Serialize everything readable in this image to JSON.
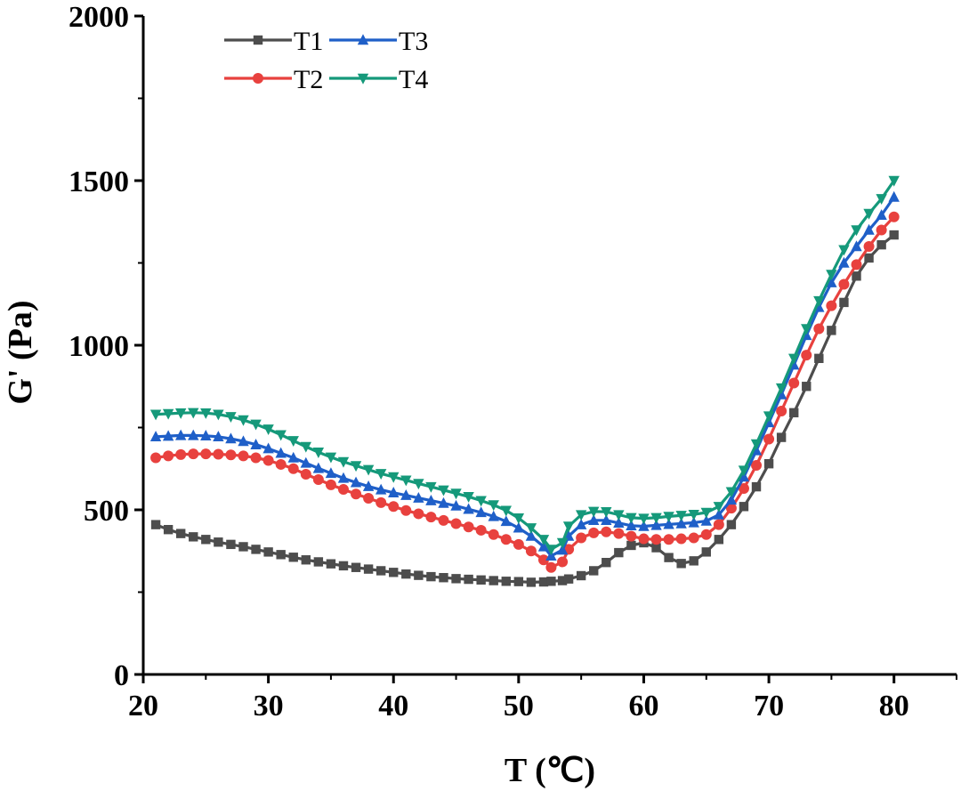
{
  "chart_data": {
    "type": "line",
    "title": "",
    "xlabel": "T (℃)",
    "ylabel": "G' (Pa)",
    "xlim": [
      20,
      85
    ],
    "ylim": [
      0,
      2000
    ],
    "xticks": [
      20,
      30,
      40,
      50,
      60,
      70,
      80
    ],
    "yticks": [
      0,
      500,
      1000,
      1500,
      2000
    ],
    "xtick_labels": [
      "20",
      "30",
      "40",
      "50",
      "60",
      "70",
      "80"
    ],
    "ytick_labels": [
      "0",
      "500",
      "1000",
      "1500",
      "2000"
    ],
    "grid": false,
    "legend_position": "top-left",
    "x": [
      21,
      22,
      23,
      24,
      25,
      26,
      27,
      28,
      29,
      30,
      31,
      32,
      33,
      34,
      35,
      36,
      37,
      38,
      39,
      40,
      41,
      42,
      43,
      44,
      45,
      46,
      47,
      48,
      49,
      50,
      51,
      52,
      52.6,
      53.5,
      54,
      55,
      56,
      57,
      58,
      59,
      60,
      61,
      62,
      63,
      64,
      65,
      66,
      67,
      68,
      69,
      70,
      71,
      72,
      73,
      74,
      75,
      76,
      77,
      78,
      79,
      80
    ],
    "series": [
      {
        "name": "T1",
        "color": "#4d4d4d",
        "marker": "square",
        "values": [
          455,
          440,
          428,
          418,
          410,
          402,
          395,
          388,
          380,
          372,
          364,
          356,
          348,
          342,
          336,
          330,
          325,
          320,
          315,
          310,
          305,
          301,
          297,
          294,
          291,
          289,
          287,
          285,
          283,
          282,
          280,
          281,
          283,
          285,
          290,
          300,
          315,
          340,
          370,
          392,
          400,
          385,
          355,
          337,
          345,
          372,
          410,
          455,
          510,
          570,
          640,
          720,
          795,
          875,
          960,
          1045,
          1130,
          1210,
          1265,
          1305,
          1335
        ]
      },
      {
        "name": "T2",
        "color": "#e8413e",
        "marker": "circle",
        "values": [
          658,
          664,
          668,
          670,
          670,
          669,
          667,
          664,
          658,
          650,
          638,
          625,
          608,
          592,
          576,
          562,
          548,
          535,
          522,
          510,
          498,
          488,
          478,
          468,
          458,
          448,
          438,
          425,
          410,
          395,
          375,
          348,
          325,
          342,
          380,
          415,
          430,
          433,
          428,
          420,
          412,
          410,
          410,
          412,
          415,
          425,
          455,
          505,
          565,
          635,
          715,
          800,
          885,
          970,
          1050,
          1120,
          1185,
          1245,
          1300,
          1350,
          1390
        ]
      },
      {
        "name": "T3",
        "color": "#1f5fc8",
        "marker": "triangle-up",
        "values": [
          722,
          724,
          726,
          726,
          725,
          722,
          716,
          708,
          698,
          686,
          672,
          658,
          642,
          626,
          611,
          596,
          583,
          571,
          561,
          552,
          544,
          536,
          528,
          520,
          512,
          502,
          492,
          480,
          465,
          445,
          420,
          388,
          360,
          378,
          420,
          455,
          468,
          468,
          460,
          452,
          450,
          453,
          456,
          458,
          461,
          466,
          485,
          530,
          600,
          680,
          765,
          850,
          940,
          1030,
          1115,
          1190,
          1250,
          1300,
          1350,
          1395,
          1450
        ]
      },
      {
        "name": "T4",
        "color": "#15997a",
        "marker": "triangle-down",
        "values": [
          790,
          792,
          794,
          795,
          794,
          790,
          783,
          773,
          760,
          745,
          728,
          710,
          692,
          675,
          660,
          646,
          634,
          622,
          610,
          600,
          590,
          580,
          570,
          560,
          550,
          540,
          528,
          515,
          498,
          475,
          445,
          410,
          380,
          400,
          450,
          485,
          495,
          494,
          485,
          476,
          474,
          476,
          480,
          483,
          486,
          492,
          510,
          555,
          620,
          700,
          785,
          870,
          960,
          1050,
          1135,
          1215,
          1290,
          1350,
          1400,
          1445,
          1500
        ]
      }
    ],
    "legend_entries": [
      "T1",
      "T3",
      "T2",
      "T4"
    ]
  }
}
